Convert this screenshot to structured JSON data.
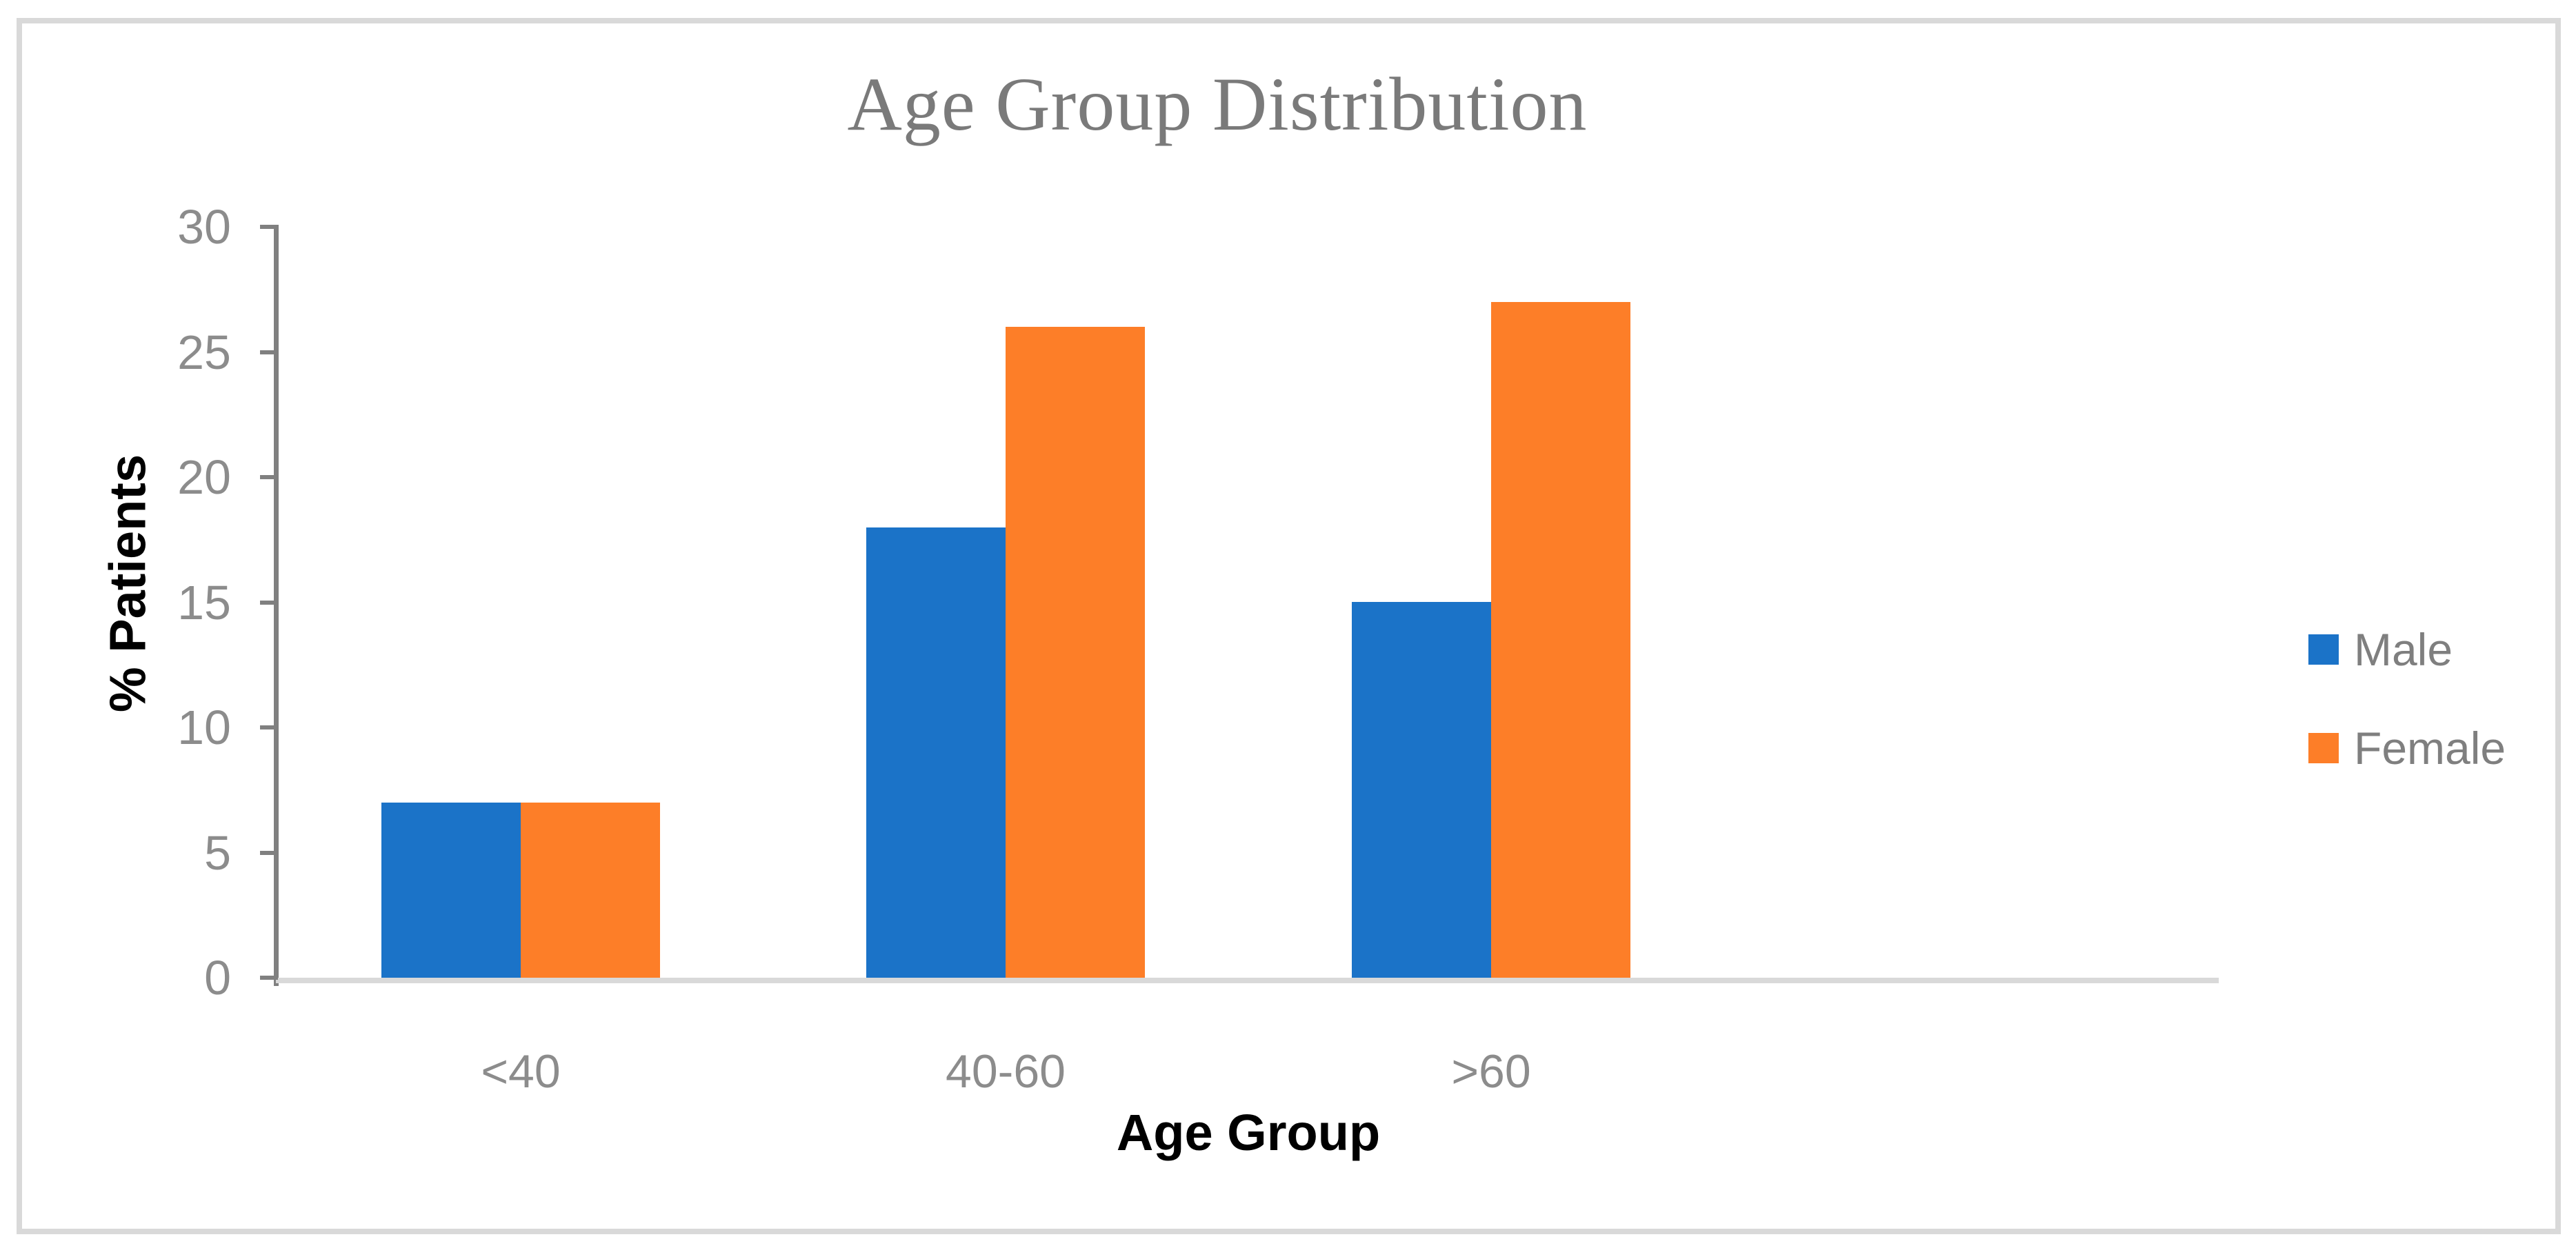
{
  "title": "Age Group Distribution",
  "chart_data": {
    "type": "bar",
    "title": "Age Group Distribution",
    "categories": [
      "<40",
      "40-60",
      ">60"
    ],
    "series": [
      {
        "name": "Male",
        "color": "#1B73C8",
        "values": [
          7,
          18,
          15
        ]
      },
      {
        "name": "Female",
        "color": "#FD7E28",
        "values": [
          7,
          26,
          27
        ]
      }
    ],
    "xlabel": "Age Group",
    "ylabel": "% Patients",
    "ylim": [
      0,
      30
    ],
    "yticks": [
      0,
      5,
      10,
      15,
      20,
      25,
      30
    ],
    "grid": false,
    "legend_position": "right"
  },
  "appearance": {
    "title_color": "#7A7A7A",
    "axis_color": "#808080",
    "tick_label_color": "#8C8C8C",
    "legend_text_color": "#7F7F7F",
    "baseline_color": "#D9D9D9",
    "frame_color": "#D9D9D9",
    "background": "#FFFFFF"
  }
}
